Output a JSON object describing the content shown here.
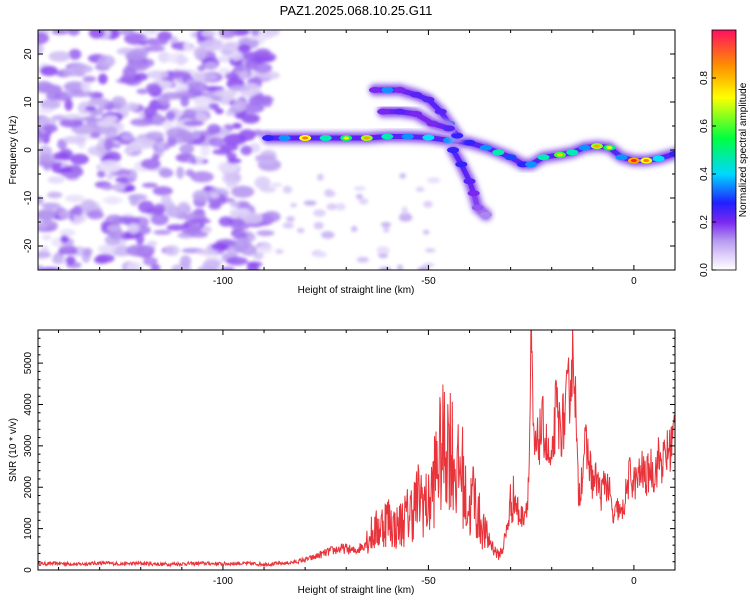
{
  "chart_data": [
    {
      "type": "heatmap",
      "title": "PAZ1.2025.068.10.25.G11",
      "xlabel": "Height of straight line (km)",
      "ylabel": "Frequency (Hz)",
      "xlim": [
        -145,
        10
      ],
      "ylim": [
        -25,
        25
      ],
      "xticks": [
        -100,
        -50,
        0
      ],
      "yticks": [
        -20,
        -10,
        0,
        10,
        20
      ],
      "colorbar": {
        "label": "Normalized spectral amplitude",
        "range": [
          0,
          1
        ],
        "ticks": [
          0.0,
          0.2,
          0.4,
          0.6,
          0.8
        ],
        "colormap": [
          "#ffffff",
          "#b89cf0",
          "#7a28f0",
          "#2020ff",
          "#00e0ff",
          "#00ff40",
          "#ffff00",
          "#ff9000",
          "#ff2020"
        ]
      },
      "noise_region": {
        "x_range": [
          -145,
          -88
        ],
        "y_range": [
          -25,
          25
        ]
      },
      "ridges": [
        {
          "name": "main",
          "x": [
            -89,
            -85,
            -80,
            -75,
            -70,
            -65,
            -60,
            -55,
            -50,
            -45,
            -40,
            -36,
            -33,
            -30,
            -27,
            -25,
            -22,
            -18,
            -15,
            -12,
            -9,
            -6,
            -3,
            0,
            3,
            6,
            10
          ],
          "y": [
            2.5,
            2.5,
            2.5,
            2.5,
            2.5,
            2.5,
            2.8,
            2.8,
            2.6,
            2.0,
            1.5,
            0.5,
            -0.5,
            -1.5,
            -3.0,
            -3.0,
            -1.5,
            -1.0,
            -0.5,
            0.5,
            0.8,
            0.5,
            -1.5,
            -2.2,
            -2.2,
            -1.8,
            -0.8
          ],
          "amplitude": [
            0.35,
            0.45,
            0.75,
            0.55,
            0.6,
            0.7,
            0.55,
            0.45,
            0.5,
            0.45,
            0.35,
            0.45,
            0.55,
            0.4,
            0.35,
            0.45,
            0.55,
            0.65,
            0.55,
            0.45,
            0.7,
            0.6,
            0.45,
            0.85,
            0.75,
            0.5,
            0.35
          ]
        },
        {
          "name": "upper",
          "x": [
            -63,
            -60,
            -57,
            -53,
            -50,
            -47,
            -45,
            -43
          ],
          "y": [
            12.5,
            12.5,
            12.5,
            11.5,
            10.5,
            8.0,
            5.5,
            3.0
          ],
          "amplitude": [
            0.25,
            0.45,
            0.25,
            0.3,
            0.3,
            0.3,
            0.4,
            0.35
          ]
        },
        {
          "name": "middle",
          "x": [
            -61,
            -57,
            -53,
            -49,
            -45
          ],
          "y": [
            8.0,
            8.0,
            7.5,
            5.5,
            4.5
          ],
          "amplitude": [
            0.25,
            0.3,
            0.25,
            0.25,
            0.3
          ]
        },
        {
          "name": "lower",
          "x": [
            -44,
            -42,
            -40,
            -39,
            -38,
            -36
          ],
          "y": [
            0.0,
            -3.0,
            -6.5,
            -9.0,
            -12.0,
            -13.5
          ],
          "amplitude": [
            0.35,
            0.35,
            0.3,
            0.25,
            0.2,
            0.15
          ]
        }
      ]
    },
    {
      "type": "line",
      "xlabel": "Height of straight line (km)",
      "ylabel": "SNR (10 * v/v)",
      "xlim": [
        -145,
        10
      ],
      "ylim": [
        0,
        5800
      ],
      "xticks": [
        -100,
        -50,
        0
      ],
      "yticks": [
        0,
        1000,
        2000,
        3000,
        4000,
        5000
      ],
      "color": "#e8333a",
      "series": [
        {
          "x": [
            -145,
            -140,
            -135,
            -130,
            -125,
            -120,
            -115,
            -110,
            -105,
            -100,
            -95,
            -90,
            -85,
            -82,
            -80,
            -78,
            -76,
            -74,
            -72,
            -70,
            -68,
            -66,
            -64,
            -62,
            -60,
            -58,
            -56,
            -54,
            -52,
            -50,
            -49,
            -48,
            -47,
            -46,
            -45,
            -44,
            -43,
            -42,
            -41,
            -40,
            -39,
            -38,
            -37,
            -36,
            -35,
            -34,
            -33,
            -32,
            -31,
            -30,
            -29,
            -28,
            -27,
            -26,
            -25.5,
            -25,
            -24.5,
            -24,
            -23,
            -22,
            -21,
            -20,
            -19,
            -18,
            -17,
            -16,
            -15,
            -14.5,
            -14,
            -13.5,
            -13,
            -12,
            -11,
            -10,
            -9,
            -8,
            -7,
            -6,
            -5,
            -4,
            -3,
            -2,
            -1,
            0,
            1,
            2,
            3,
            4,
            5,
            6,
            7,
            8,
            9,
            10
          ],
          "y": [
            150,
            160,
            140,
            170,
            150,
            160,
            140,
            150,
            160,
            150,
            160,
            140,
            160,
            200,
            250,
            300,
            380,
            450,
            500,
            520,
            450,
            580,
            850,
            1000,
            1250,
            1000,
            1200,
            1450,
            1800,
            1500,
            2000,
            2500,
            2800,
            3000,
            3200,
            2800,
            2200,
            2600,
            1700,
            1400,
            1900,
            1300,
            1100,
            800,
            700,
            500,
            350,
            500,
            900,
            1650,
            1750,
            1300,
            1300,
            1600,
            2400,
            5750,
            3200,
            2800,
            3200,
            3500,
            2800,
            2400,
            3900,
            3400,
            3600,
            4200,
            5000,
            5300,
            3200,
            1800,
            2000,
            3000,
            2700,
            2100,
            2200,
            1800,
            2200,
            1900,
            1200,
            1500,
            1300,
            1800,
            2300,
            2100,
            2200,
            2400,
            2200,
            2500,
            2300,
            2700,
            2600,
            2800,
            3000,
            3400
          ]
        }
      ]
    }
  ]
}
